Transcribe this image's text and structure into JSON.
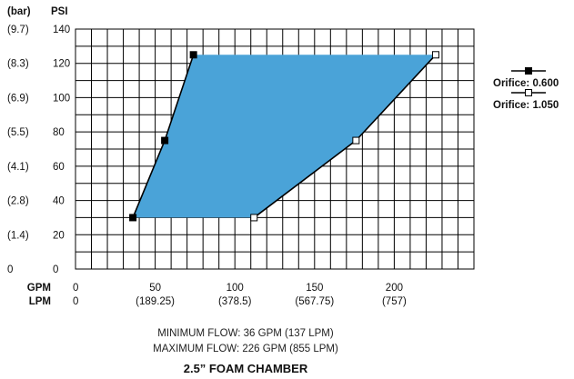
{
  "chart_data": {
    "type": "area",
    "title": "2.5” FOAM CHAMBER",
    "y_unit_primary": "PSI",
    "y_unit_secondary": "(bar)",
    "x_unit_primary": "GPM",
    "x_unit_secondary": "LPM",
    "xlim": [
      0,
      250
    ],
    "ylim": [
      0,
      140
    ],
    "y_ticks": [
      {
        "psi": 0,
        "psi_label": "0",
        "bar_label": "0"
      },
      {
        "psi": 20,
        "psi_label": "20",
        "bar_label": "(1.4)"
      },
      {
        "psi": 40,
        "psi_label": "40",
        "bar_label": "(2.8)"
      },
      {
        "psi": 60,
        "psi_label": "60",
        "bar_label": "(4.1)"
      },
      {
        "psi": 80,
        "psi_label": "80",
        "bar_label": "(5.5)"
      },
      {
        "psi": 100,
        "psi_label": "100",
        "bar_label": "(6.9)"
      },
      {
        "psi": 120,
        "psi_label": "120",
        "bar_label": "(8.3)"
      },
      {
        "psi": 140,
        "psi_label": "140",
        "bar_label": "(9.7)"
      }
    ],
    "x_ticks": [
      {
        "gpm": 0,
        "gpm_label": "0",
        "lpm_label": "0"
      },
      {
        "gpm": 50,
        "gpm_label": "50",
        "lpm_label": "(189.25)"
      },
      {
        "gpm": 100,
        "gpm_label": "100",
        "lpm_label": "(378.5)"
      },
      {
        "gpm": 150,
        "gpm_label": "150",
        "lpm_label": "(567.75)"
      },
      {
        "gpm": 200,
        "gpm_label": "200",
        "lpm_label": "(757)"
      }
    ],
    "series": [
      {
        "name": "Orifice: 0.600",
        "marker": "filled-square",
        "x": [
          36,
          56,
          74
        ],
        "y": [
          30,
          75,
          125
        ]
      },
      {
        "name": "Orifice: 1.050",
        "marker": "open-square",
        "x": [
          112,
          176,
          226
        ],
        "y": [
          30,
          75,
          125
        ]
      }
    ],
    "fill_color": "#4aa3d8",
    "line_color": "#000000",
    "grid": true,
    "legend_position": "right",
    "notes": [
      "MINIMUM FLOW: 36 GPM (137 LPM)",
      "MAXIMUM FLOW: 226 GPM (855 LPM)"
    ]
  }
}
